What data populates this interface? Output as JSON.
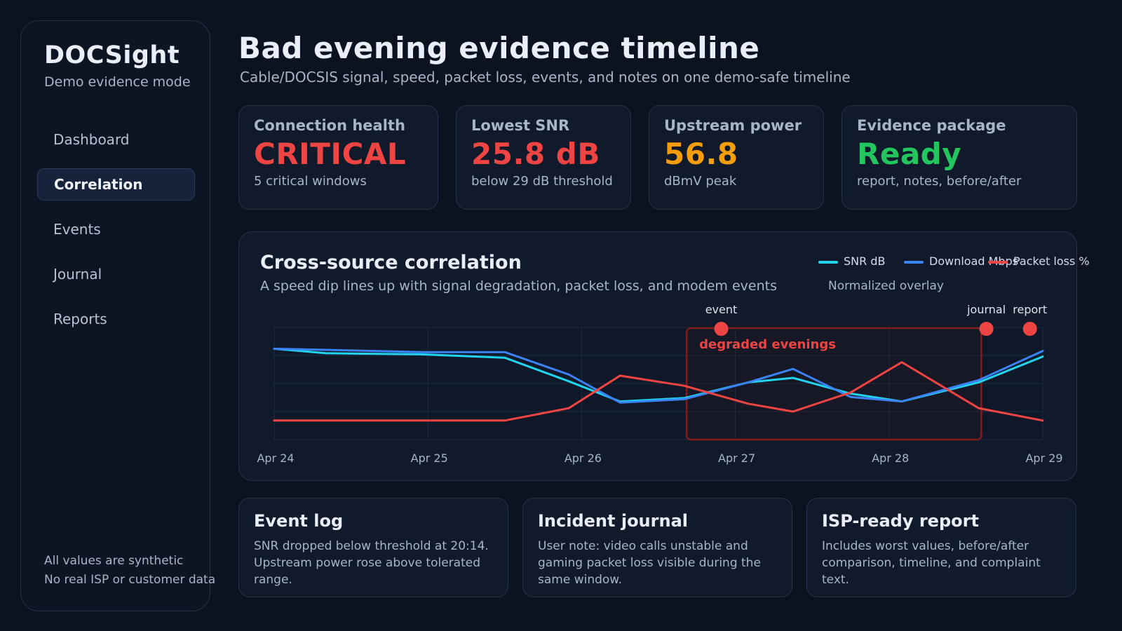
{
  "sidebar": {
    "brand": "DOCSight",
    "brand_sub": "Demo evidence mode",
    "items": [
      {
        "label": "Dashboard",
        "active": false
      },
      {
        "label": "Correlation",
        "active": true
      },
      {
        "label": "Events",
        "active": false
      },
      {
        "label": "Journal",
        "active": false
      },
      {
        "label": "Reports",
        "active": false
      }
    ],
    "footer": [
      "All values are synthetic",
      "No real ISP or customer data"
    ]
  },
  "header": {
    "title": "Bad evening evidence timeline",
    "subtitle": "Cable/DOCSIS signal, speed, packet loss, events, and notes on one demo-safe timeline"
  },
  "cards": [
    {
      "label": "Connection health",
      "value": "CRITICAL",
      "note": "5 critical windows",
      "color": "#ef4444"
    },
    {
      "label": "Lowest SNR",
      "value": "25.8 dB",
      "note": "below 29 dB threshold",
      "color": "#ef4444"
    },
    {
      "label": "Upstream power",
      "value": "56.8",
      "note": "dBmV peak",
      "color": "#f59e0b"
    },
    {
      "label": "Evidence package",
      "value": "Ready",
      "note": "report, notes, before/after",
      "color": "#22c55e"
    }
  ],
  "chart": {
    "title": "Cross-source correlation",
    "subtitle": "A speed dip lines up with signal degradation, packet loss, and modem events",
    "note": "Normalized overlay",
    "region_label": "degraded evenings",
    "markers": [
      "event",
      "journal",
      "report"
    ]
  },
  "chart_data": {
    "type": "line",
    "x": [
      "Apr 24",
      "Apr 24.4",
      "Apr 25",
      "Apr 25.4",
      "Apr 25.9",
      "Apr 26.3",
      "Apr 26.7",
      "Apr 27.05",
      "Apr 27.45",
      "Apr 27.8",
      "Apr 28.2",
      "Apr 28.6",
      "Apr 29"
    ],
    "x_ticks": [
      "Apr 24",
      "Apr 25",
      "Apr 26",
      "Apr 27",
      "Apr 28",
      "Apr 29"
    ],
    "x_numeric": [
      0,
      0.4,
      1.15,
      1.8,
      2.3,
      2.7,
      3.2,
      3.7,
      4.05,
      4.5,
      4.9,
      5.5,
      6
    ],
    "series": [
      {
        "name": "SNR dB",
        "color": "#22d3ee",
        "values": [
          0.81,
          0.77,
          0.76,
          0.73,
          0.52,
          0.34,
          0.37,
          0.51,
          0.55,
          0.41,
          0.34,
          0.51,
          0.74
        ]
      },
      {
        "name": "Download Mbps",
        "color": "#3b82f6",
        "values": [
          0.81,
          0.8,
          0.78,
          0.78,
          0.58,
          0.33,
          0.36,
          0.51,
          0.63,
          0.38,
          0.34,
          0.53,
          0.79
        ]
      },
      {
        "name": "Packet loss %",
        "color": "#ef4444",
        "values": [
          0.17,
          0.17,
          0.17,
          0.17,
          0.28,
          0.57,
          0.48,
          0.32,
          0.25,
          0.42,
          0.69,
          0.28,
          0.17
        ]
      }
    ],
    "events": [
      {
        "label": "event",
        "x": 3.49
      },
      {
        "label": "journal",
        "x": 5.56
      },
      {
        "label": "report",
        "x": 5.9
      }
    ],
    "region": {
      "label": "degraded evenings",
      "x_start": 3.22,
      "x_end": 5.52
    },
    "ylim": [
      0,
      1
    ],
    "grid": true,
    "legend": "top-right"
  },
  "bottom_cards": [
    {
      "title": "Event log",
      "body": "SNR dropped below threshold at 20:14. Upstream power rose above tolerated range."
    },
    {
      "title": "Incident journal",
      "body": "User note: video calls unstable and gaming packet loss visible during the same window."
    },
    {
      "title": "ISP-ready report",
      "body": "Includes worst values, before/after comparison, timeline, and complaint text."
    }
  ]
}
